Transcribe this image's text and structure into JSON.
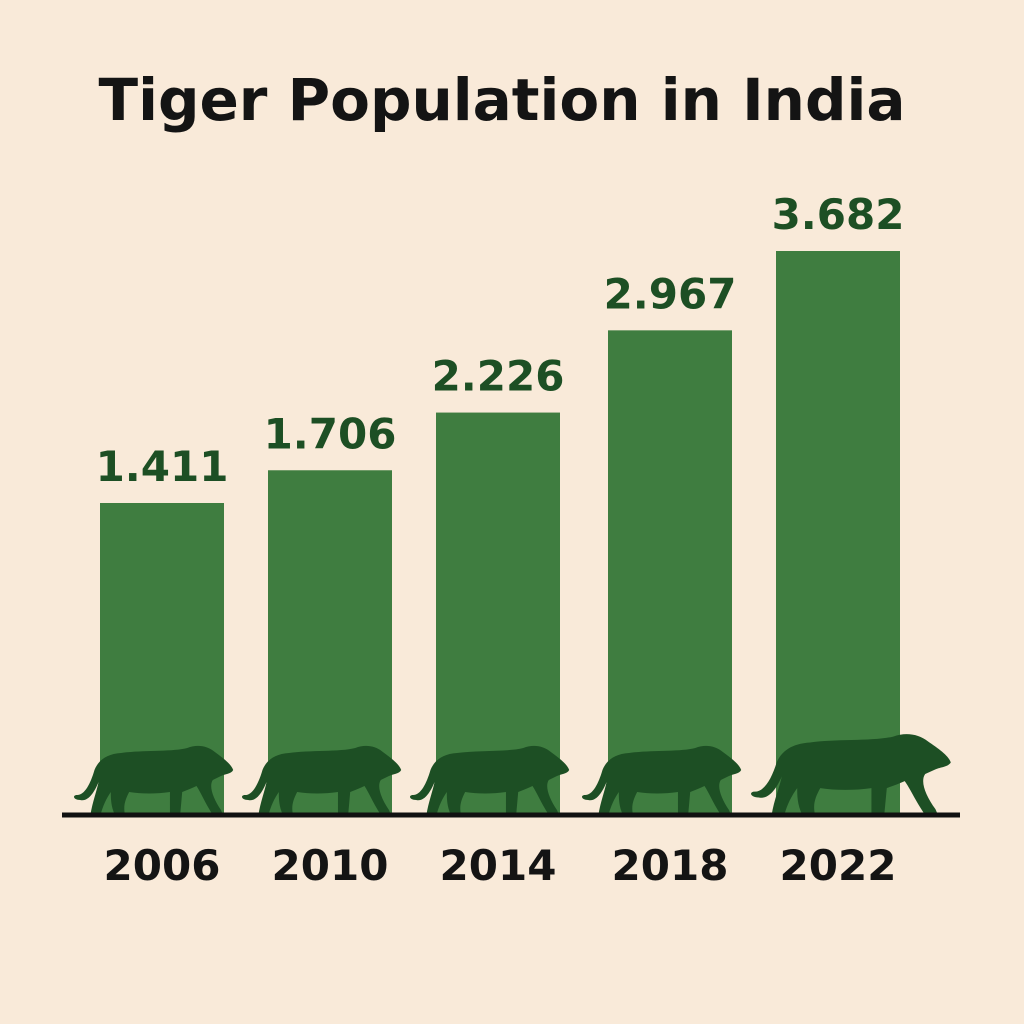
{
  "chart_data": {
    "type": "bar",
    "title": "Tiger Population in India",
    "categories": [
      "2006",
      "2010",
      "2014",
      "2018",
      "2022"
    ],
    "values": [
      1411,
      1706,
      2226,
      2967,
      3682
    ],
    "value_labels": [
      "1.411",
      "1.706",
      "2.226",
      "2.967",
      "3.682"
    ],
    "xlabel": "",
    "ylabel": "",
    "grid": false,
    "y_axis_shown": false,
    "decoration": "tiger-silhouette-per-bar",
    "colors": {
      "background": "#f9ead9",
      "bar": "#3f7d40",
      "tiger": "#1d4f24",
      "value_label": "#1d4f24",
      "text": "#141414"
    }
  }
}
